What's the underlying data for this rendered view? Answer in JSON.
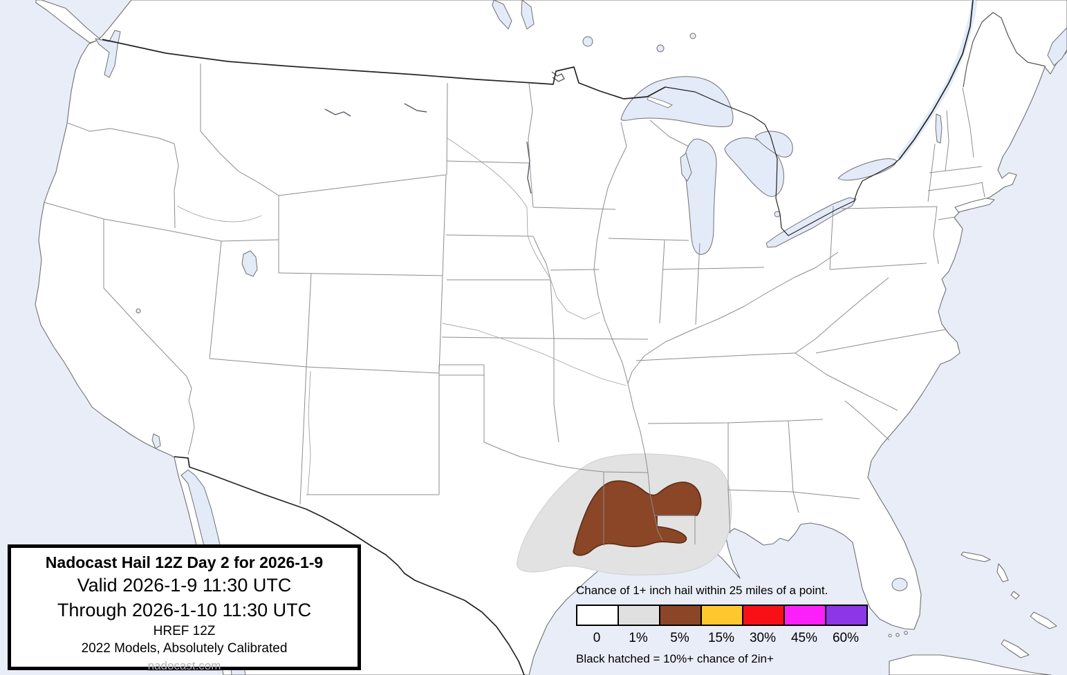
{
  "map": {
    "description": "Continental United States hail outlook map",
    "colors": {
      "water": "#e9edf8",
      "lakes": "#e3eaf8",
      "land": "#ffffff",
      "coastline": "#707070",
      "state_border": "#8c8c8c",
      "national_border": "#222222"
    },
    "forecast_regions": [
      {
        "level": "1%",
        "color": "#e2e2e2",
        "outline": "#cfcfcf",
        "location": "Central Texas through Louisiana into southern Arkansas and Mississippi"
      },
      {
        "level": "5%",
        "color": "#8a4627",
        "outline": "#5b2d12",
        "location": "East Texas and northern Louisiana"
      }
    ]
  },
  "title_box": {
    "title": "Nadocast Hail 12Z Day 2 for 2026-1-9",
    "valid_line": "Valid 2026-1-9 11:30 UTC",
    "through_line": "Through 2026-1-10 11:30 UTC",
    "model_line": "HREF 12Z",
    "calibration_line": "2022 Models, Absolutely Calibrated",
    "website": "nadocast.com"
  },
  "legend": {
    "title": "Chance of 1+ inch hail within 25 miles of a point.",
    "entries": [
      {
        "label": "0",
        "color": "#ffffff"
      },
      {
        "label": "1%",
        "color": "#e0e0e0"
      },
      {
        "label": "5%",
        "color": "#8a4627"
      },
      {
        "label": "15%",
        "color": "#ffc72e"
      },
      {
        "label": "30%",
        "color": "#f91016"
      },
      {
        "label": "45%",
        "color": "#fb20fa"
      },
      {
        "label": "60%",
        "color": "#8c37e6"
      }
    ],
    "footnote": "Black hatched = 10%+ chance of 2in+"
  }
}
